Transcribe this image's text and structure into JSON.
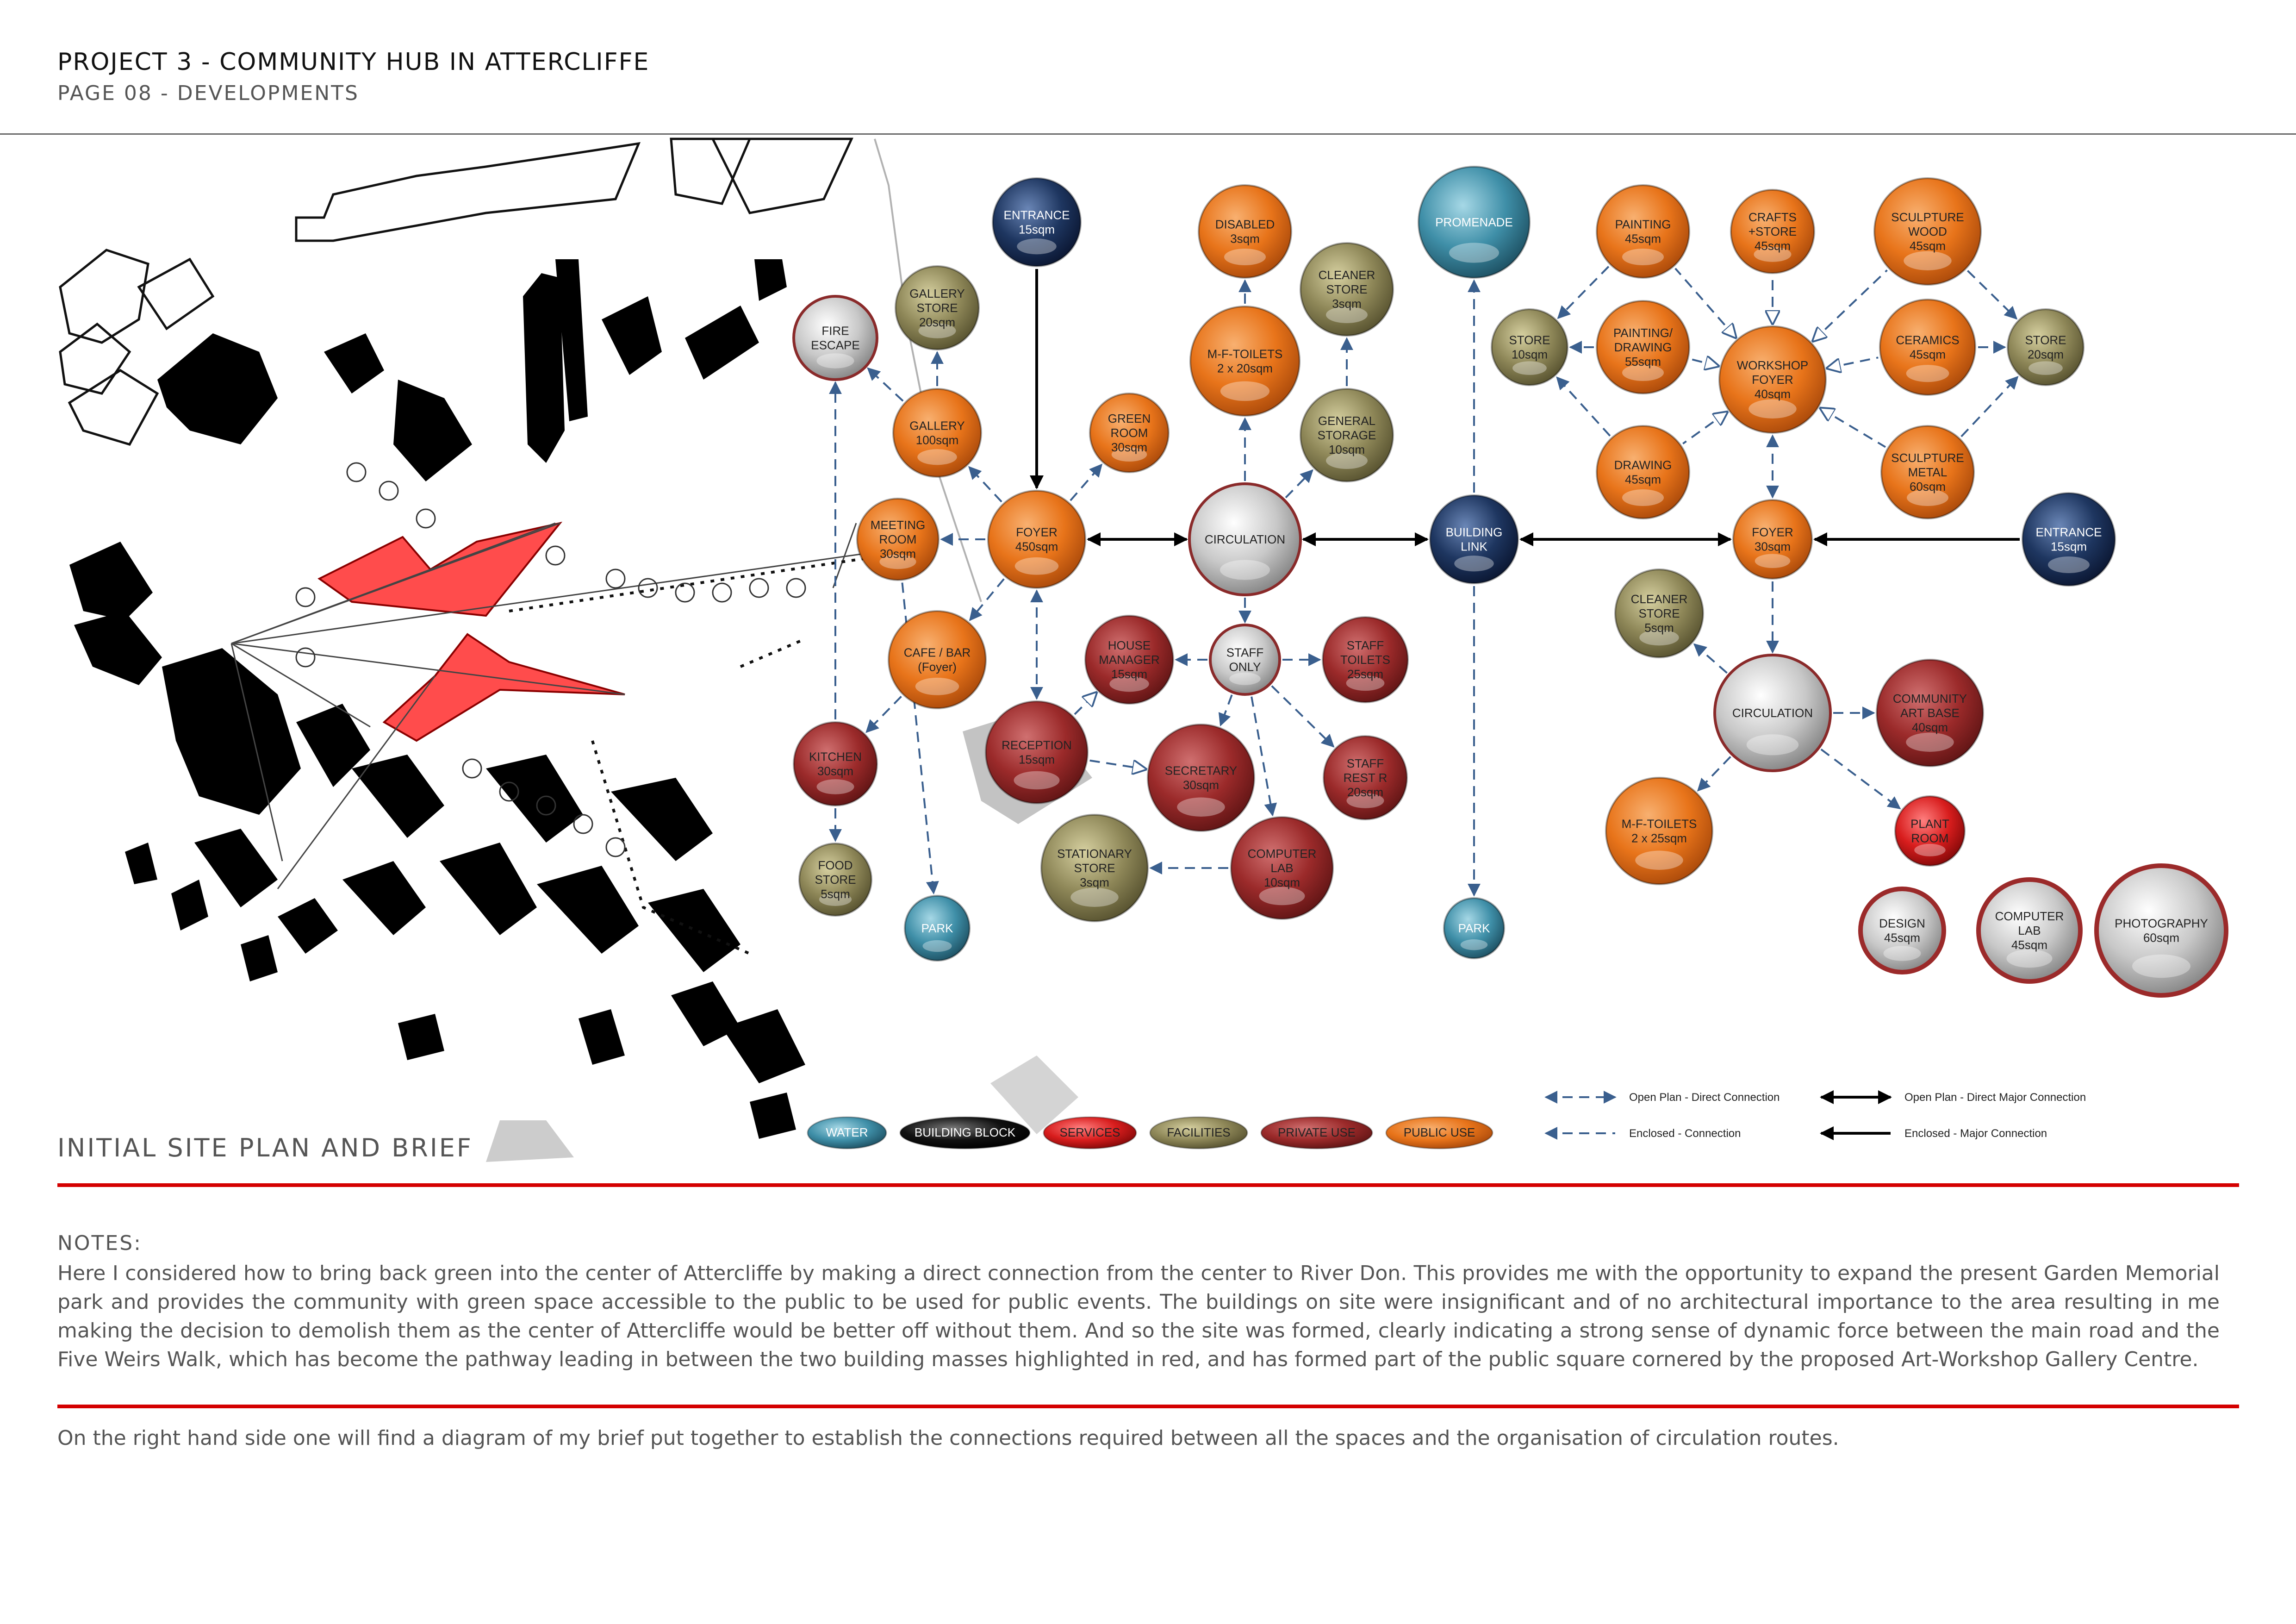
{
  "header": {
    "title": "PROJECT 3 - COMMUNITY HUB IN ATTERCLIFFE",
    "subtitle": "PAGE 08 - DEVELOPMENTS"
  },
  "site_caption": "INITIAL SITE PLAN AND BRIEF",
  "colors": {
    "public": "#e8741a",
    "private": "#9b2a2a",
    "facilities": "#8e8758",
    "services": "#d81d1d",
    "building_block": "#111111",
    "water": "#3f8fa8",
    "grey": "#bdbdbd",
    "navy": "#1e3660",
    "arrow": "#3a5f8e"
  },
  "nodes": [
    {
      "id": "entrance1",
      "lines": [
        "ENTRANCE",
        "15sqm"
      ],
      "type": "navy"
    },
    {
      "id": "gallery_store",
      "lines": [
        "GALLERY",
        "STORE",
        "20sqm"
      ],
      "type": "facilities"
    },
    {
      "id": "fire_escape",
      "lines": [
        "FIRE",
        "ESCAPE"
      ],
      "type": "grey"
    },
    {
      "id": "gallery",
      "lines": [
        "GALLERY",
        "100sqm"
      ],
      "type": "public"
    },
    {
      "id": "green_room",
      "lines": [
        "GREEN",
        "ROOM",
        "30sqm"
      ],
      "type": "public"
    },
    {
      "id": "meeting_room",
      "lines": [
        "MEETING",
        "ROOM",
        "30sqm"
      ],
      "type": "public"
    },
    {
      "id": "foyer1",
      "lines": [
        "FOYER",
        "450sqm"
      ],
      "type": "public"
    },
    {
      "id": "cafe",
      "lines": [
        "CAFE / BAR",
        "(Foyer)"
      ],
      "type": "public"
    },
    {
      "id": "kitchen",
      "lines": [
        "KITCHEN",
        "30sqm"
      ],
      "type": "private"
    },
    {
      "id": "food_store",
      "lines": [
        "FOOD",
        "STORE",
        "5sqm"
      ],
      "type": "facilities"
    },
    {
      "id": "park1",
      "lines": [
        "PARK"
      ],
      "type": "water"
    },
    {
      "id": "reception",
      "lines": [
        "RECEPTION",
        "15sqm"
      ],
      "type": "private"
    },
    {
      "id": "house_manager",
      "lines": [
        "HOUSE",
        "MANAGER",
        "15sqm"
      ],
      "type": "private"
    },
    {
      "id": "secretary",
      "lines": [
        "SECRETARY",
        "30sqm"
      ],
      "type": "private"
    },
    {
      "id": "stationary",
      "lines": [
        "STATIONARY",
        "STORE",
        "3sqm"
      ],
      "type": "facilities"
    },
    {
      "id": "computer_lab1",
      "lines": [
        "COMPUTER",
        "LAB",
        "10sqm"
      ],
      "type": "private"
    },
    {
      "id": "staff_only",
      "lines": [
        "STAFF",
        "ONLY"
      ],
      "type": "grey"
    },
    {
      "id": "staff_toilets",
      "lines": [
        "STAFF",
        "TOILETS",
        "25sqm"
      ],
      "type": "private"
    },
    {
      "id": "staff_rest",
      "lines": [
        "STAFF",
        "REST R",
        "20sqm"
      ],
      "type": "private"
    },
    {
      "id": "circulation1",
      "lines": [
        "CIRCULATION"
      ],
      "type": "grey"
    },
    {
      "id": "mf_toilets1",
      "lines": [
        "M-F-TOILETS",
        "2 x 20sqm"
      ],
      "type": "public"
    },
    {
      "id": "disabled",
      "lines": [
        "DISABLED",
        "3sqm"
      ],
      "type": "public"
    },
    {
      "id": "cleaner_store1",
      "lines": [
        "CLEANER",
        "STORE",
        "3sqm"
      ],
      "type": "facilities"
    },
    {
      "id": "general_storage",
      "lines": [
        "GENERAL",
        "STORAGE",
        "10sqm"
      ],
      "type": "facilities"
    },
    {
      "id": "promenade",
      "lines": [
        "PROMENADE"
      ],
      "type": "water"
    },
    {
      "id": "building_link",
      "lines": [
        "BUILDING",
        "LINK"
      ],
      "type": "navy"
    },
    {
      "id": "park2",
      "lines": [
        "PARK"
      ],
      "type": "water"
    },
    {
      "id": "painting",
      "lines": [
        "PAINTING",
        "45sqm"
      ],
      "type": "public"
    },
    {
      "id": "crafts",
      "lines": [
        "CRAFTS",
        "+STORE",
        "45sqm"
      ],
      "type": "public"
    },
    {
      "id": "sculpture_wood",
      "lines": [
        "SCULPTURE",
        "WOOD",
        "45sqm"
      ],
      "type": "public"
    },
    {
      "id": "store10",
      "lines": [
        "STORE",
        "10sqm"
      ],
      "type": "facilities"
    },
    {
      "id": "painting_drawing",
      "lines": [
        "PAINTING/",
        "DRAWING",
        "55sqm"
      ],
      "type": "public"
    },
    {
      "id": "workshop_foyer",
      "lines": [
        "WORKSHOP",
        "FOYER",
        "40sqm"
      ],
      "type": "public"
    },
    {
      "id": "ceramics",
      "lines": [
        "CERAMICS",
        "45sqm"
      ],
      "type": "public"
    },
    {
      "id": "store20",
      "lines": [
        "STORE",
        "20sqm"
      ],
      "type": "facilities"
    },
    {
      "id": "drawing",
      "lines": [
        "DRAWING",
        "45sqm"
      ],
      "type": "public"
    },
    {
      "id": "sculpture_metal",
      "lines": [
        "SCULPTURE",
        "METAL",
        "60sqm"
      ],
      "type": "public"
    },
    {
      "id": "foyer2",
      "lines": [
        "FOYER",
        "30sqm"
      ],
      "type": "public"
    },
    {
      "id": "entrance2",
      "lines": [
        "ENTRANCE",
        "15sqm"
      ],
      "type": "navy"
    },
    {
      "id": "cleaner_store2",
      "lines": [
        "CLEANER",
        "STORE",
        "5sqm"
      ],
      "type": "facilities"
    },
    {
      "id": "circulation2",
      "lines": [
        "CIRCULATION"
      ],
      "type": "grey"
    },
    {
      "id": "community_art",
      "lines": [
        "COMMUNITY",
        "ART BASE",
        "40sqm"
      ],
      "type": "private"
    },
    {
      "id": "mf_toilets2",
      "lines": [
        "M-F-TOILETS",
        "2 x 25sqm"
      ],
      "type": "public"
    },
    {
      "id": "plant_room",
      "lines": [
        "PLANT",
        "ROOM"
      ],
      "type": "services"
    },
    {
      "id": "design",
      "lines": [
        "DESIGN",
        "45sqm"
      ],
      "type": "greyring"
    },
    {
      "id": "computer_lab2",
      "lines": [
        "COMPUTER",
        "LAB",
        "45sqm"
      ],
      "type": "greyring"
    },
    {
      "id": "photography",
      "lines": [
        "PHOTOGRAPHY",
        "60sqm"
      ],
      "type": "greyring"
    }
  ],
  "links": [
    {
      "from": "entrance1",
      "to": "foyer1",
      "style": "major",
      "dir": "to"
    },
    {
      "from": "foyer1",
      "to": "circulation1",
      "style": "major",
      "dir": "both"
    },
    {
      "from": "circulation1",
      "to": "building_link",
      "style": "major",
      "dir": "both"
    },
    {
      "from": "building_link",
      "to": "foyer2",
      "style": "major",
      "dir": "both"
    },
    {
      "from": "entrance2",
      "to": "foyer2",
      "style": "major",
      "dir": "to"
    },
    {
      "from": "foyer1",
      "to": "gallery",
      "style": "dashed",
      "dir": "to"
    },
    {
      "from": "gallery",
      "to": "gallery_store",
      "style": "dashed",
      "dir": "to"
    },
    {
      "from": "gallery",
      "to": "fire_escape",
      "style": "dashed",
      "dir": "to"
    },
    {
      "from": "foyer1",
      "to": "green_room",
      "style": "dashed",
      "dir": "to"
    },
    {
      "from": "foyer1",
      "to": "meeting_room",
      "style": "dashed",
      "dir": "to"
    },
    {
      "from": "foyer1",
      "to": "cafe",
      "style": "dashed",
      "dir": "to"
    },
    {
      "from": "cafe",
      "to": "kitchen",
      "style": "dashed",
      "dir": "to"
    },
    {
      "from": "kitchen",
      "to": "fire_escape",
      "style": "dashed",
      "dir": "to"
    },
    {
      "from": "kitchen",
      "to": "food_store",
      "style": "dashed",
      "dir": "to"
    },
    {
      "from": "meeting_room",
      "to": "park1",
      "style": "dashed",
      "dir": "to"
    },
    {
      "from": "foyer1",
      "to": "reception",
      "style": "dashed",
      "dir": "both"
    },
    {
      "from": "reception",
      "to": "house_manager",
      "style": "open",
      "dir": "to"
    },
    {
      "from": "reception",
      "to": "secretary",
      "style": "open",
      "dir": "to"
    },
    {
      "from": "circulation1",
      "to": "staff_only",
      "style": "dashed",
      "dir": "to"
    },
    {
      "from": "staff_only",
      "to": "house_manager",
      "style": "dashed",
      "dir": "to"
    },
    {
      "from": "staff_only",
      "to": "secretary",
      "style": "dashed",
      "dir": "to"
    },
    {
      "from": "staff_only",
      "to": "staff_toilets",
      "style": "dashed",
      "dir": "to"
    },
    {
      "from": "staff_only",
      "to": "staff_rest",
      "style": "dashed",
      "dir": "to"
    },
    {
      "from": "staff_only",
      "to": "computer_lab1",
      "style": "dashed",
      "dir": "to"
    },
    {
      "from": "computer_lab1",
      "to": "stationary",
      "style": "dashed",
      "dir": "to"
    },
    {
      "from": "circulation1",
      "to": "mf_toilets1",
      "style": "dashed",
      "dir": "to"
    },
    {
      "from": "mf_toilets1",
      "to": "disabled",
      "style": "dashed",
      "dir": "to"
    },
    {
      "from": "circulation1",
      "to": "general_storage",
      "style": "dashed",
      "dir": "to"
    },
    {
      "from": "general_storage",
      "to": "cleaner_store1",
      "style": "dashed",
      "dir": "to"
    },
    {
      "from": "building_link",
      "to": "promenade",
      "style": "dashed",
      "dir": "to"
    },
    {
      "from": "building_link",
      "to": "park2",
      "style": "dashed",
      "dir": "to"
    },
    {
      "from": "foyer2",
      "to": "workshop_foyer",
      "style": "dashed",
      "dir": "both"
    },
    {
      "from": "workshop_foyer",
      "to": "crafts",
      "style": "open",
      "dir": "from"
    },
    {
      "from": "workshop_foyer",
      "to": "painting",
      "style": "open",
      "dir": "from"
    },
    {
      "from": "workshop_foyer",
      "to": "painting_drawing",
      "style": "open",
      "dir": "from"
    },
    {
      "from": "workshop_foyer",
      "to": "drawing",
      "style": "open",
      "dir": "from"
    },
    {
      "from": "workshop_foyer",
      "to": "ceramics",
      "style": "open",
      "dir": "from"
    },
    {
      "from": "workshop_foyer",
      "to": "sculpture_wood",
      "style": "open",
      "dir": "from"
    },
    {
      "from": "workshop_foyer",
      "to": "sculpture_metal",
      "style": "open",
      "dir": "from"
    },
    {
      "from": "painting",
      "to": "store10",
      "style": "dashed",
      "dir": "to"
    },
    {
      "from": "painting_drawing",
      "to": "store10",
      "style": "dashed",
      "dir": "to"
    },
    {
      "from": "drawing",
      "to": "store10",
      "style": "dashed",
      "dir": "to"
    },
    {
      "from": "sculpture_wood",
      "to": "store20",
      "style": "dashed",
      "dir": "to"
    },
    {
      "from": "ceramics",
      "to": "store20",
      "style": "dashed",
      "dir": "to"
    },
    {
      "from": "sculpture_metal",
      "to": "store20",
      "style": "dashed",
      "dir": "to"
    },
    {
      "from": "foyer2",
      "to": "circulation2",
      "style": "dashed",
      "dir": "to"
    },
    {
      "from": "circulation2",
      "to": "cleaner_store2",
      "style": "dashed",
      "dir": "to"
    },
    {
      "from": "circulation2",
      "to": "community_art",
      "style": "dashed",
      "dir": "to"
    },
    {
      "from": "circulation2",
      "to": "mf_toilets2",
      "style": "dashed",
      "dir": "to"
    },
    {
      "from": "circulation2",
      "to": "plant_room",
      "style": "dashed",
      "dir": "to"
    }
  ],
  "legend": {
    "pills": [
      {
        "label": "WATER",
        "type": "water"
      },
      {
        "label": "BUILDING BLOCK",
        "type": "building_block"
      },
      {
        "label": "SERVICES",
        "type": "services"
      },
      {
        "label": "FACILITIES",
        "type": "facilities"
      },
      {
        "label": "PRIVATE USE",
        "type": "private"
      },
      {
        "label": "PUBLIC USE",
        "type": "public"
      }
    ],
    "lines": [
      {
        "label": "Open Plan - Direct Connection",
        "style": "dashed",
        "dir": "both"
      },
      {
        "label": "Enclosed - Connection",
        "style": "dashed",
        "dir": "to"
      },
      {
        "label": "Open Plan - Direct Major Connection",
        "style": "major",
        "dir": "both"
      },
      {
        "label": "Enclosed - Major Connection",
        "style": "major",
        "dir": "to"
      }
    ]
  },
  "notes": {
    "heading": "NOTES:",
    "paragraph": "Here I considered how to bring back green into the center of Attercliffe by making a direct connection from the center to River Don. This provides me with the opportunity to expand the present Garden Memorial park and provides the community with green space accessible to the public to be used for public events. The buildings on site were insignificant and of no architectural importance to the area resulting in me making the decision to demolish them as the center of Attercliffe would be better off without them. And so the site was formed, clearly indicating a strong sense of dynamic force between the main road and the Five Weirs Walk, which has become the pathway leading in between the two building masses highlighted in red, and has formed part of the public square cornered by the proposed Art-Workshop Gallery Centre.",
    "paragraph2": "On the right hand side one will find a diagram of my brief put together to establish the connections required between all the spaces and the organisation of circulation routes."
  }
}
